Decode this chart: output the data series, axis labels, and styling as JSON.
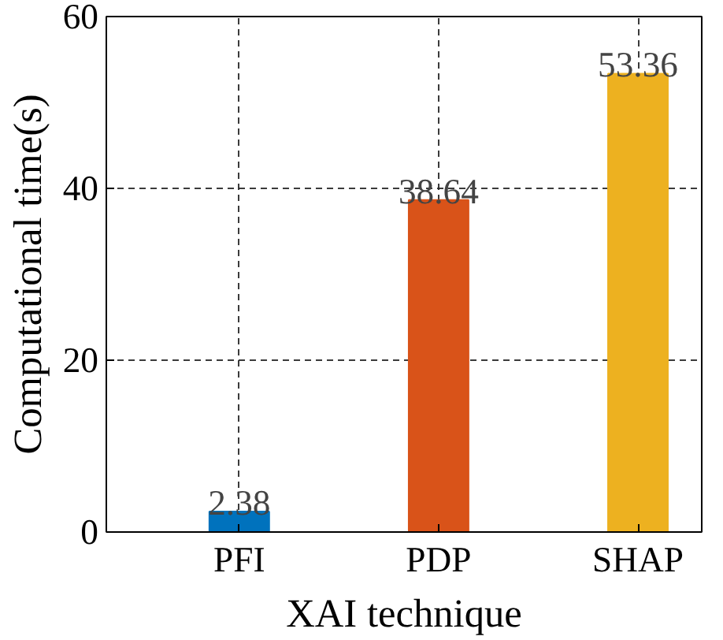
{
  "chart_data": {
    "type": "bar",
    "xlabel": "XAI technique",
    "ylabel": "Computational time(s)",
    "categories": [
      "PFI",
      "PDP",
      "SHAP"
    ],
    "values": [
      2.38,
      38.64,
      53.36
    ],
    "colors": [
      "#0072bd",
      "#d95319",
      "#edb120"
    ],
    "ylim": [
      0,
      60
    ],
    "yticks": [
      0,
      20,
      40,
      60
    ],
    "grid": true,
    "data_labels": true
  }
}
